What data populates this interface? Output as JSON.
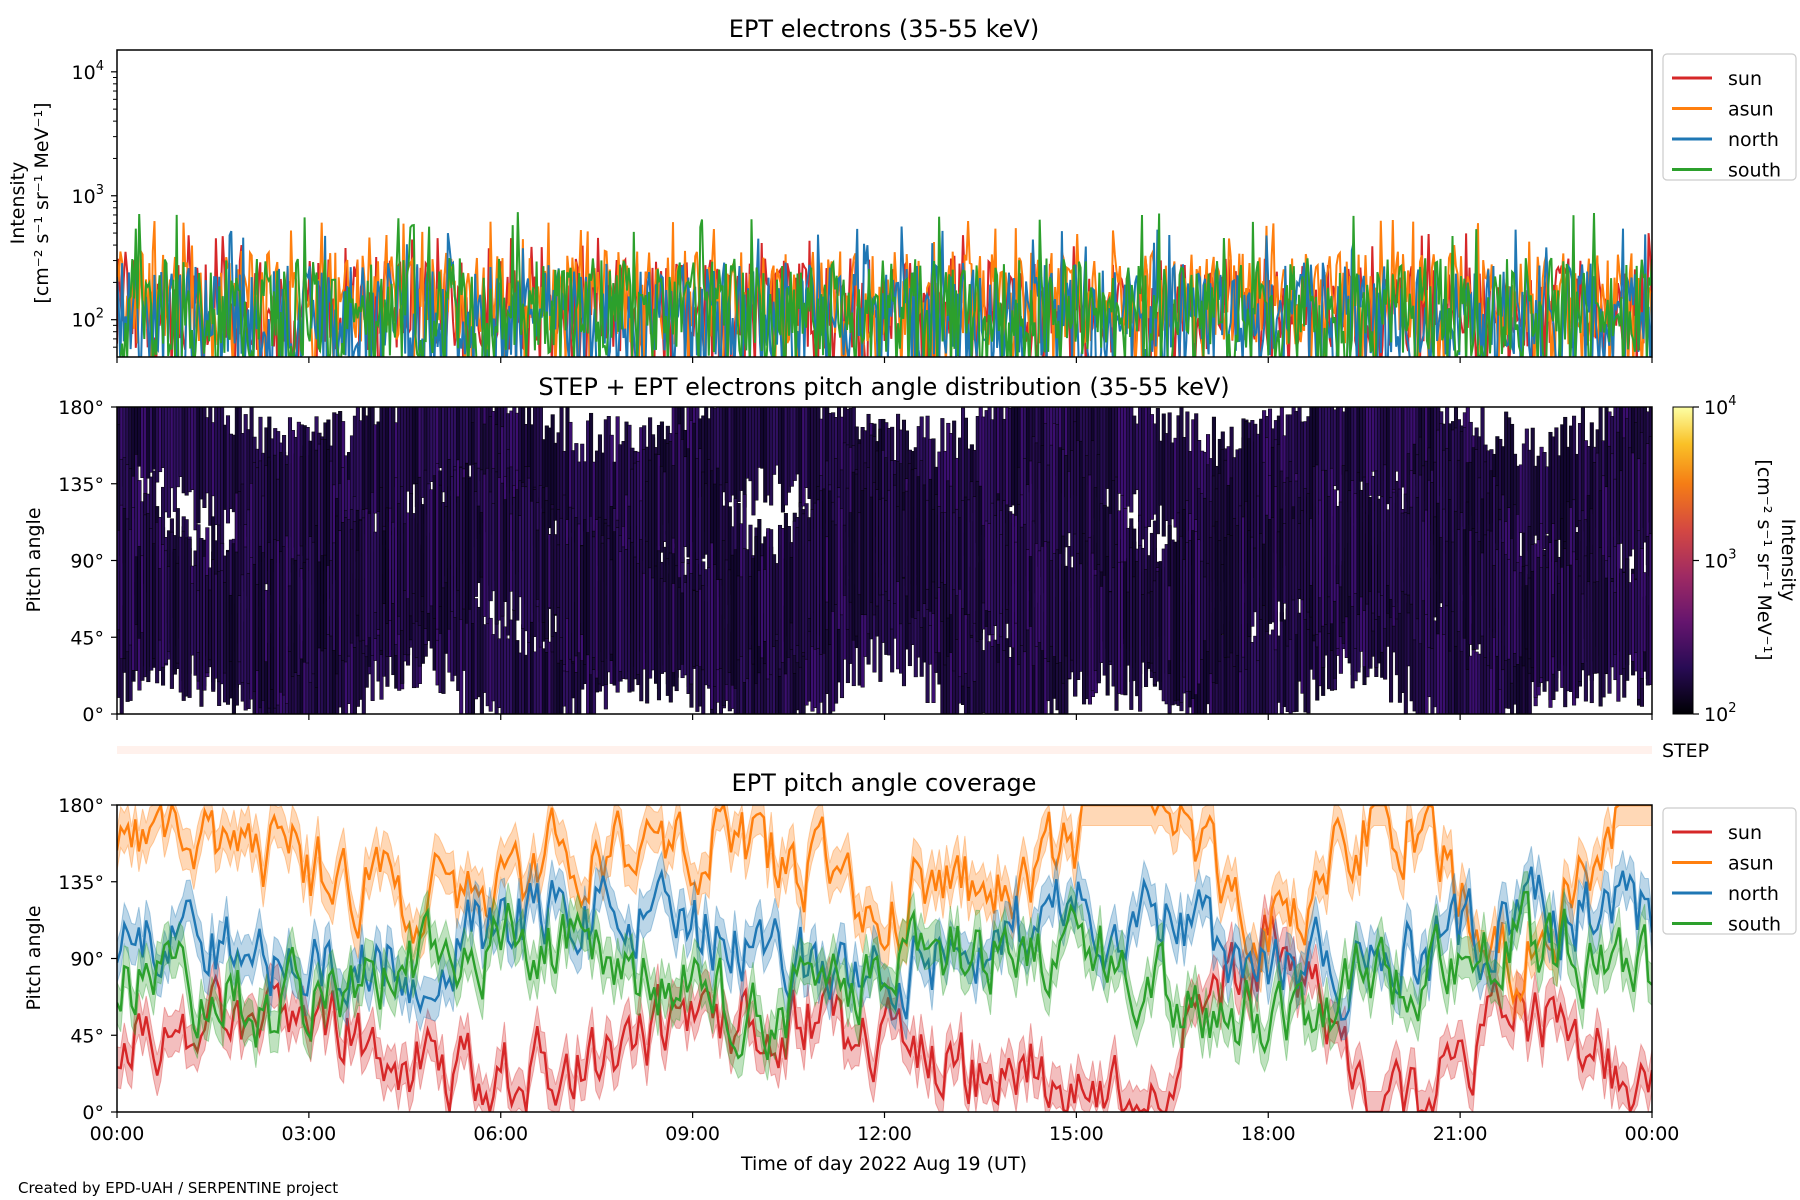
{
  "figure": {
    "credit": "Created by EPD-UAH / SERPENTINE project",
    "xlabel": "Time of day 2022 Aug 19 (UT)",
    "xticks": [
      "00:00",
      "03:00",
      "06:00",
      "09:00",
      "12:00",
      "15:00",
      "18:00",
      "21:00",
      "00:00"
    ],
    "xrange_hours": [
      0,
      24
    ]
  },
  "colors": {
    "sun": "#d62728",
    "asun": "#ff7f0e",
    "north": "#1f77b4",
    "south": "#2ca02c"
  },
  "chart_data": [
    {
      "type": "line",
      "title": "EPT electrons (35-55 keV)",
      "ylabel_line1": "Intensity",
      "ylabel_line2": "[cm⁻² s⁻¹ sr⁻¹ MeV⁻¹]",
      "yscale": "log",
      "ylim": [
        50,
        15000
      ],
      "yticks": [
        {
          "value": 100,
          "base": "10",
          "exp": "2"
        },
        {
          "value": 1000,
          "base": "10",
          "exp": "3"
        },
        {
          "value": 10000,
          "base": "10",
          "exp": "4"
        }
      ],
      "legend": "top-right outside",
      "series": [
        {
          "name": "sun",
          "level": 130,
          "spread": 0.38,
          "peak": 500
        },
        {
          "name": "asun",
          "level": 150,
          "spread": 0.38,
          "peak": 650
        },
        {
          "name": "north",
          "level": 110,
          "spread": 0.42,
          "peak": 600
        },
        {
          "name": "south",
          "level": 120,
          "spread": 0.42,
          "peak": 750
        }
      ]
    },
    {
      "type": "heatmap",
      "title": "STEP + EPT electrons pitch angle distribution (35-55 keV)",
      "ylabel": "Pitch angle",
      "ylim": [
        0,
        180
      ],
      "yticks": [
        "0°",
        "45°",
        "90°",
        "135°",
        "180°"
      ],
      "colorbar": {
        "label_line1": "Intensity",
        "label_line2": "[cm⁻² s⁻¹ sr⁻¹ MeV⁻¹]",
        "scale": "log",
        "range": [
          100,
          10000
        ],
        "ticks": [
          {
            "base": "10",
            "exp": "2"
          },
          {
            "base": "10",
            "exp": "3"
          },
          {
            "base": "10",
            "exp": "4"
          }
        ]
      }
    },
    {
      "type": "line",
      "title": "STEP",
      "note": "empty STEP strip"
    },
    {
      "type": "line",
      "title": "EPT pitch angle coverage",
      "ylabel": "Pitch angle",
      "ylim": [
        0,
        180
      ],
      "yticks": [
        "0°",
        "45°",
        "90°",
        "135°",
        "180°"
      ],
      "legend": "top-right outside",
      "series": [
        {
          "name": "sun",
          "mean_deg": 40
        },
        {
          "name": "asun",
          "mean_deg": 145
        },
        {
          "name": "north",
          "mean_deg": 100
        },
        {
          "name": "south",
          "mean_deg": 80
        }
      ]
    }
  ]
}
